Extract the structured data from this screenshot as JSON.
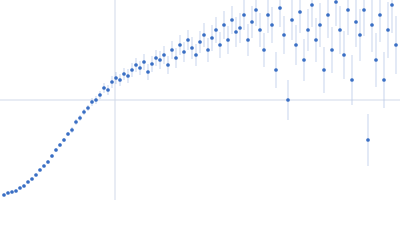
{
  "chart_data": {
    "type": "scatter",
    "x": [
      4,
      8,
      12,
      16,
      20,
      24,
      28,
      32,
      36,
      40,
      44,
      48,
      52,
      56,
      60,
      64,
      68,
      72,
      76,
      80,
      84,
      88,
      92,
      96,
      100,
      104,
      108,
      112,
      116,
      120,
      124,
      128,
      132,
      136,
      140,
      144,
      148,
      152,
      156,
      160,
      164,
      168,
      172,
      176,
      180,
      184,
      188,
      192,
      196,
      200,
      204,
      208,
      212,
      216,
      220,
      224,
      228,
      232,
      236,
      240,
      244,
      248,
      252,
      256,
      260,
      264,
      268,
      272,
      276,
      280,
      284,
      288,
      292,
      296,
      300,
      304,
      308,
      312,
      316,
      320,
      324,
      328,
      332,
      336,
      340,
      344,
      348,
      352,
      356,
      360,
      364,
      368,
      372,
      376,
      380,
      384,
      388,
      392,
      396
    ],
    "series": [
      {
        "color": "#3a6fc4",
        "error_color": "#b9c9e8",
        "values": [
          5,
          7,
          8,
          9,
          12,
          14,
          18,
          21,
          25,
          30,
          34,
          38,
          44,
          50,
          55,
          60,
          66,
          70,
          78,
          82,
          88,
          92,
          98,
          100,
          105,
          112,
          110,
          118,
          122,
          120,
          126,
          124,
          130,
          135,
          132,
          138,
          128,
          136,
          142,
          140,
          145,
          135,
          150,
          142,
          155,
          148,
          160,
          152,
          145,
          158,
          165,
          150,
          162,
          170,
          155,
          175,
          160,
          180,
          168,
          172,
          185,
          160,
          178,
          190,
          170,
          150,
          185,
          175,
          130,
          192,
          165,
          100,
          180,
          155,
          188,
          140,
          170,
          195,
          160,
          175,
          130,
          185,
          150,
          198,
          170,
          145,
          190,
          120,
          178,
          165,
          190,
          60,
          175,
          140,
          185,
          120,
          170,
          195,
          155
        ],
        "errors": [
          1,
          1,
          1,
          1,
          1,
          1,
          1,
          1,
          1,
          1,
          1,
          2,
          2,
          2,
          2,
          2,
          2,
          3,
          3,
          3,
          3,
          3,
          4,
          4,
          4,
          5,
          5,
          6,
          6,
          6,
          6,
          7,
          7,
          7,
          7,
          8,
          8,
          8,
          8,
          9,
          9,
          9,
          9,
          10,
          10,
          10,
          10,
          11,
          11,
          11,
          12,
          12,
          13,
          13,
          13,
          14,
          14,
          14,
          15,
          15,
          15,
          16,
          16,
          16,
          17,
          17,
          18,
          18,
          18,
          19,
          19,
          20,
          20,
          20,
          21,
          21,
          21,
          22,
          22,
          22,
          23,
          23,
          23,
          24,
          24,
          24,
          25,
          25,
          25,
          26,
          26,
          26,
          27,
          27,
          27,
          28,
          28,
          28,
          29
        ]
      }
    ],
    "xlim": [
      0,
      400
    ],
    "ylim": [
      0,
      200
    ],
    "xticks": [
      115
    ],
    "yticks": [
      100
    ],
    "grid": true
  }
}
